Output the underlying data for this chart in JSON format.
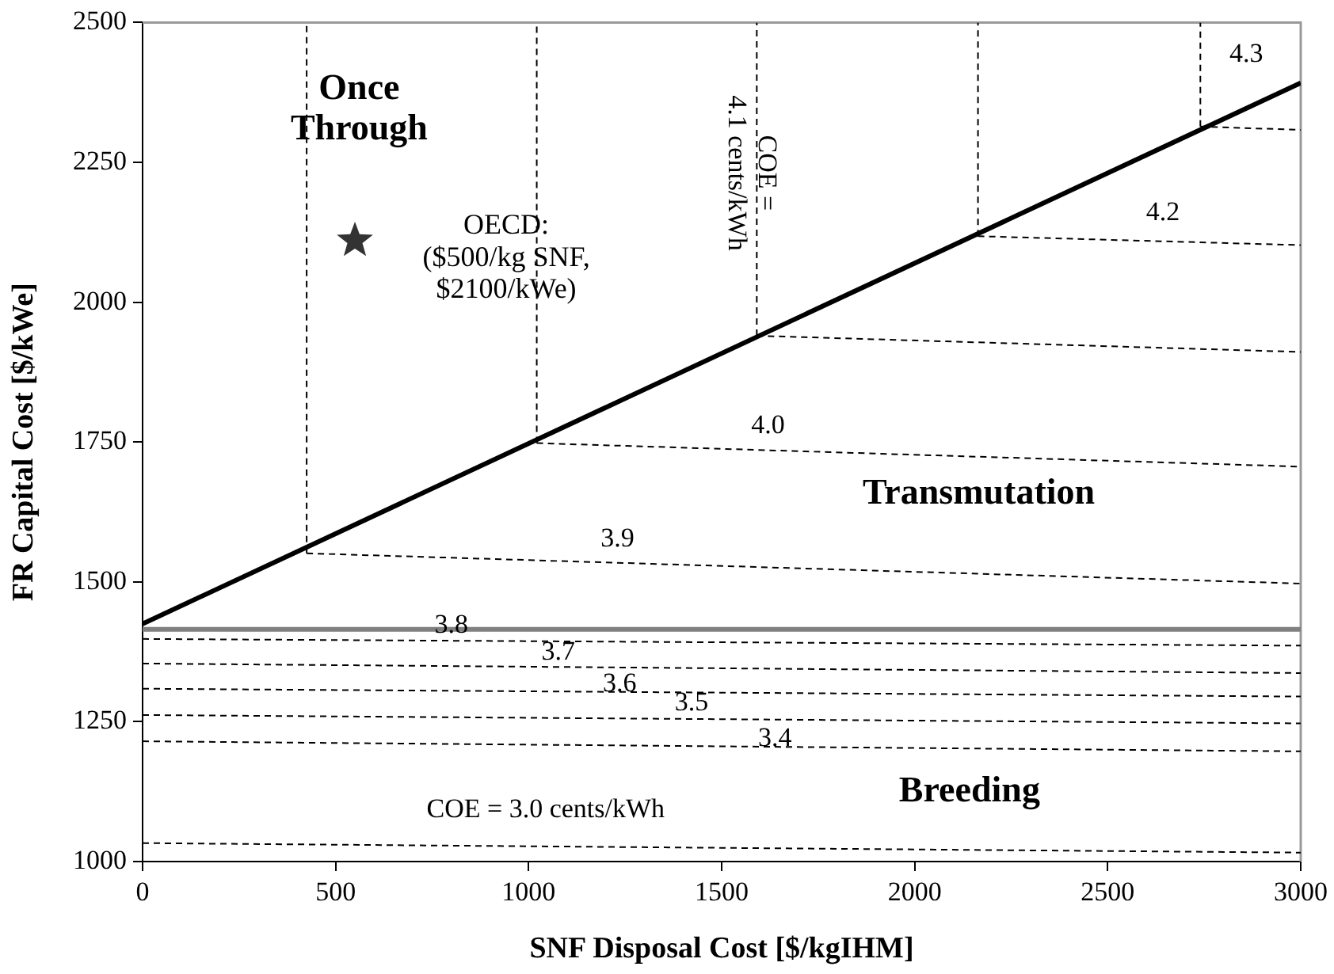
{
  "chart_data": {
    "type": "line",
    "xlabel": "SNF Disposal Cost [$/kgIHM]",
    "ylabel": "FR Capital Cost [$/kWe]",
    "xlim": [
      0,
      3000
    ],
    "xticks": [
      0,
      500,
      1000,
      1500,
      2000,
      2500,
      3000
    ],
    "ylim": [
      1000,
      2500
    ],
    "yticks": [
      1000,
      1250,
      1500,
      1750,
      2000,
      2250,
      2500
    ],
    "grid": false,
    "legend": false,
    "series": [
      {
        "color": "#000000",
        "line_style": "solid",
        "x": [
          0,
          3000
        ],
        "values": [
          1425,
          2392
        ]
      },
      {
        "color": "#808080",
        "line_style": "solid",
        "x": [
          0,
          3000
        ],
        "values": [
          1415,
          1415
        ]
      },
      {
        "color": "#000000",
        "line_style": "dashed",
        "x": [
          0,
          3000
        ],
        "values": [
          1398,
          1386
        ]
      },
      {
        "color": "#000000",
        "line_style": "dashed",
        "x": [
          0,
          3000
        ],
        "values": [
          1354,
          1337
        ]
      },
      {
        "color": "#000000",
        "line_style": "dashed",
        "x": [
          0,
          3000
        ],
        "values": [
          1309,
          1295
        ]
      },
      {
        "color": "#000000",
        "line_style": "dashed",
        "x": [
          0,
          3000
        ],
        "values": [
          1262,
          1247
        ]
      },
      {
        "color": "#000000",
        "line_style": "dashed",
        "x": [
          0,
          3000
        ],
        "values": [
          1215,
          1197
        ]
      },
      {
        "color": "#000000",
        "line_style": "dashed",
        "x": [
          0,
          3000
        ],
        "values": [
          1033,
          1016
        ]
      },
      {
        "color": "#000000",
        "line_style": "dashed",
        "x": [
          425,
          3000
        ],
        "values": [
          1551,
          1497
        ]
      },
      {
        "color": "#000000",
        "line_style": "dashed",
        "x": [
          1021,
          3000
        ],
        "values": [
          1748,
          1706
        ]
      },
      {
        "color": "#000000",
        "line_style": "dashed",
        "x": [
          1591,
          3000
        ],
        "values": [
          1940,
          1911
        ]
      },
      {
        "color": "#000000",
        "line_style": "dashed",
        "x": [
          2164,
          3000
        ],
        "values": [
          2118,
          2102
        ]
      },
      {
        "color": "#000000",
        "line_style": "dashed",
        "x": [
          2740,
          3000
        ],
        "values": [
          2314,
          2308
        ]
      },
      {
        "color": "#000000",
        "line_style": "dashed",
        "x": [
          425,
          425
        ],
        "values": [
          1551,
          2500
        ]
      },
      {
        "color": "#000000",
        "line_style": "dashed",
        "x": [
          1021,
          1021
        ],
        "values": [
          1748,
          2500
        ]
      },
      {
        "color": "#000000",
        "line_style": "dashed",
        "x": [
          1591,
          1591
        ],
        "values": [
          1940,
          2500
        ]
      },
      {
        "color": "#000000",
        "line_style": "dashed",
        "x": [
          2164,
          2164
        ],
        "values": [
          2118,
          2500
        ]
      },
      {
        "color": "#000000",
        "line_style": "dashed",
        "x": [
          2740,
          2740
        ],
        "values": [
          2314,
          2500
        ]
      },
      {
        "type": "scatter",
        "marker": "star",
        "color": "#333333",
        "x": [
          550
        ],
        "values": [
          2110
        ]
      }
    ],
    "annotations": [
      "Once Through",
      "OECD: ($500/kg SNF, $2100/kWe)",
      {
        "text": "COE = 4.1 cents/kWh",
        "x": 1575,
        "y": 2231
      },
      "4.3",
      "4.2",
      "4.0",
      "3.9",
      {
        "text": "3.8",
        "x": 800,
        "y": 1422
      },
      "3.7",
      "3.6",
      "3.5",
      "3.4",
      "Transmutation",
      "Breeding",
      "COE = 3.0 cents/kWh"
    ]
  }
}
